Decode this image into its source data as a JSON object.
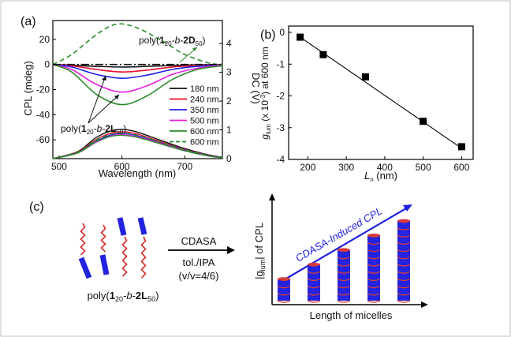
{
  "panel_labels": {
    "a": "(a)",
    "b": "(b)",
    "c": "(c)"
  },
  "chart_data": [
    {
      "id": "a",
      "type": "line",
      "title": "",
      "xlabel": "Wavelength (nm)",
      "ylabel": "CPL (mdeg)",
      "ylabel_right": "DC (V)",
      "xlim": [
        490,
        760
      ],
      "ylim": [
        -75,
        35
      ],
      "ylim_right": [
        0,
        4.8
      ],
      "xticks": [
        500,
        600,
        700
      ],
      "yticks": [
        -60,
        -40,
        -20,
        0,
        20
      ],
      "yticks_right": [
        0,
        1,
        2,
        3,
        4
      ],
      "legend_position": "right",
      "legend": [
        "180 nm",
        "240 nm",
        "350 nm",
        "500 nm",
        "600 nm",
        "600 nm"
      ],
      "annotations": {
        "top_pre": "poly(",
        "top_sub1": "20",
        "top_mid": "-b-",
        "top_bold": "2D",
        "top_sub2": "50",
        "top_post": ")",
        "bot_pre": "poly(",
        "bot_sub1": "20",
        "bot_mid": "-b-",
        "bot_bold": "2L",
        "bot_sub2": "50",
        "bot_post": ")",
        "num": "1"
      },
      "cpl_series": [
        {
          "name": "180 nm",
          "color": "#111111",
          "dash": "",
          "x": [
            490,
            520,
            560,
            600,
            640,
            680,
            720,
            760
          ],
          "y": [
            0,
            -0.5,
            -1.5,
            -2,
            -1.5,
            -0.8,
            -0.3,
            0
          ]
        },
        {
          "name": "240 nm",
          "color": "#e8102a",
          "dash": "",
          "x": [
            490,
            520,
            560,
            600,
            640,
            680,
            720,
            760
          ],
          "y": [
            0,
            -1,
            -4,
            -6,
            -4.5,
            -2,
            -0.8,
            0
          ]
        },
        {
          "name": "350 nm",
          "color": "#1d1de6",
          "dash": "",
          "x": [
            490,
            520,
            560,
            600,
            640,
            680,
            720,
            760
          ],
          "y": [
            0,
            -2,
            -8,
            -11,
            -8.5,
            -4,
            -1.5,
            -0.3
          ]
        },
        {
          "name": "500 nm",
          "color": "#e81ee0",
          "dash": "",
          "x": [
            490,
            520,
            560,
            600,
            640,
            680,
            720,
            760
          ],
          "y": [
            0,
            -4,
            -16,
            -22,
            -17,
            -8,
            -3,
            -0.5
          ]
        },
        {
          "name": "600 nm",
          "color": "#2b8c2b",
          "dash": "",
          "x": [
            490,
            520,
            560,
            600,
            640,
            680,
            720,
            760
          ],
          "y": [
            0,
            -6,
            -24,
            -32,
            -25,
            -12,
            -4,
            -1
          ]
        },
        {
          "name": "600 nm",
          "color": "#2b8c2b",
          "dash": "6,4",
          "x": [
            490,
            520,
            560,
            590,
            620,
            660,
            700,
            740,
            760
          ],
          "y": [
            0,
            8,
            24,
            32,
            30,
            20,
            8,
            1,
            0
          ]
        },
        {
          "name": "",
          "color": "#111111",
          "dash": "10,3,2,3",
          "x": [
            490,
            760
          ],
          "y": [
            0,
            0
          ]
        }
      ],
      "dc_series": [
        {
          "name": "180 nm",
          "color": "#111111",
          "dash": "",
          "x": [
            490,
            530,
            560,
            590,
            620,
            660,
            700,
            740,
            760
          ],
          "y": [
            0,
            0.25,
            0.75,
            1.0,
            0.95,
            0.65,
            0.35,
            0.12,
            0.05
          ]
        },
        {
          "name": "240 nm",
          "color": "#e8102a",
          "dash": "",
          "x": [
            490,
            530,
            560,
            590,
            620,
            660,
            700,
            740,
            760
          ],
          "y": [
            0,
            0.24,
            0.68,
            0.92,
            0.88,
            0.6,
            0.32,
            0.11,
            0.04
          ]
        },
        {
          "name": "350 nm",
          "color": "#1d1de6",
          "dash": "",
          "x": [
            490,
            530,
            560,
            590,
            620,
            660,
            700,
            740,
            760
          ],
          "y": [
            0,
            0.22,
            0.62,
            0.86,
            0.82,
            0.56,
            0.3,
            0.1,
            0.04
          ]
        },
        {
          "name": "500 nm",
          "color": "#e81ee0",
          "dash": "",
          "x": [
            490,
            530,
            560,
            590,
            620,
            660,
            700,
            740,
            760
          ],
          "y": [
            0,
            0.2,
            0.58,
            0.82,
            0.78,
            0.54,
            0.28,
            0.09,
            0.03
          ]
        },
        {
          "name": "600 nm",
          "color": "#2b8c2b",
          "dash": "",
          "x": [
            490,
            530,
            560,
            590,
            620,
            660,
            700,
            740,
            760
          ],
          "y": [
            0,
            0.2,
            0.6,
            0.8,
            0.76,
            0.52,
            0.27,
            0.08,
            0.03
          ]
        },
        {
          "name": "600 nm",
          "color": "#2b8c2b",
          "dash": "6,4",
          "x": [
            490,
            530,
            560,
            590,
            620,
            660,
            700,
            740,
            760
          ],
          "y": [
            0,
            0.23,
            0.66,
            0.88,
            0.84,
            0.58,
            0.31,
            0.1,
            0.04
          ]
        }
      ]
    },
    {
      "id": "b",
      "type": "scatter",
      "xlabel_main": "L",
      "xlabel_sub": "n",
      "xlabel_rest": " (nm)",
      "ylabel_g": "g",
      "ylabel_sub": "lum",
      "ylabel_mid": " (x 10",
      "ylabel_sup": "-3",
      "ylabel_rest": ") at 600 nm",
      "xlim": [
        150,
        630
      ],
      "ylim": [
        -4,
        0.2
      ],
      "xticks": [
        200,
        300,
        400,
        500,
        600
      ],
      "yticks": [
        0,
        -1,
        -2,
        -3,
        -4
      ],
      "x": [
        180,
        240,
        350,
        500,
        600
      ],
      "y": [
        -0.15,
        -0.7,
        -1.4,
        -2.8,
        -3.6
      ],
      "fit": {
        "x": [
          180,
          600
        ],
        "y": [
          -0.15,
          -3.65
        ]
      }
    }
  ],
  "scheme": {
    "arrow_top": "CDASA",
    "arrow_bot1": "tol./IPA",
    "arrow_bot2": "(v/v=4/6)",
    "poly_label": {
      "pre": "poly(",
      "num": "1",
      "sub1": "20",
      "mid": "-b-",
      "bold": "2L",
      "sub2": "50",
      "post": ")"
    },
    "bar_label": "CDASA-Induced CPL",
    "yaxis": {
      "pre": "|g",
      "sub": "lum",
      "post": "| of CPL"
    },
    "xaxis": "Length of micelles",
    "micelle_stacks": [
      3,
      5,
      7,
      9,
      11
    ],
    "colors": {
      "blue": "#2323e0",
      "red": "#d63b3b",
      "arrow": "#1f1fdc"
    }
  }
}
